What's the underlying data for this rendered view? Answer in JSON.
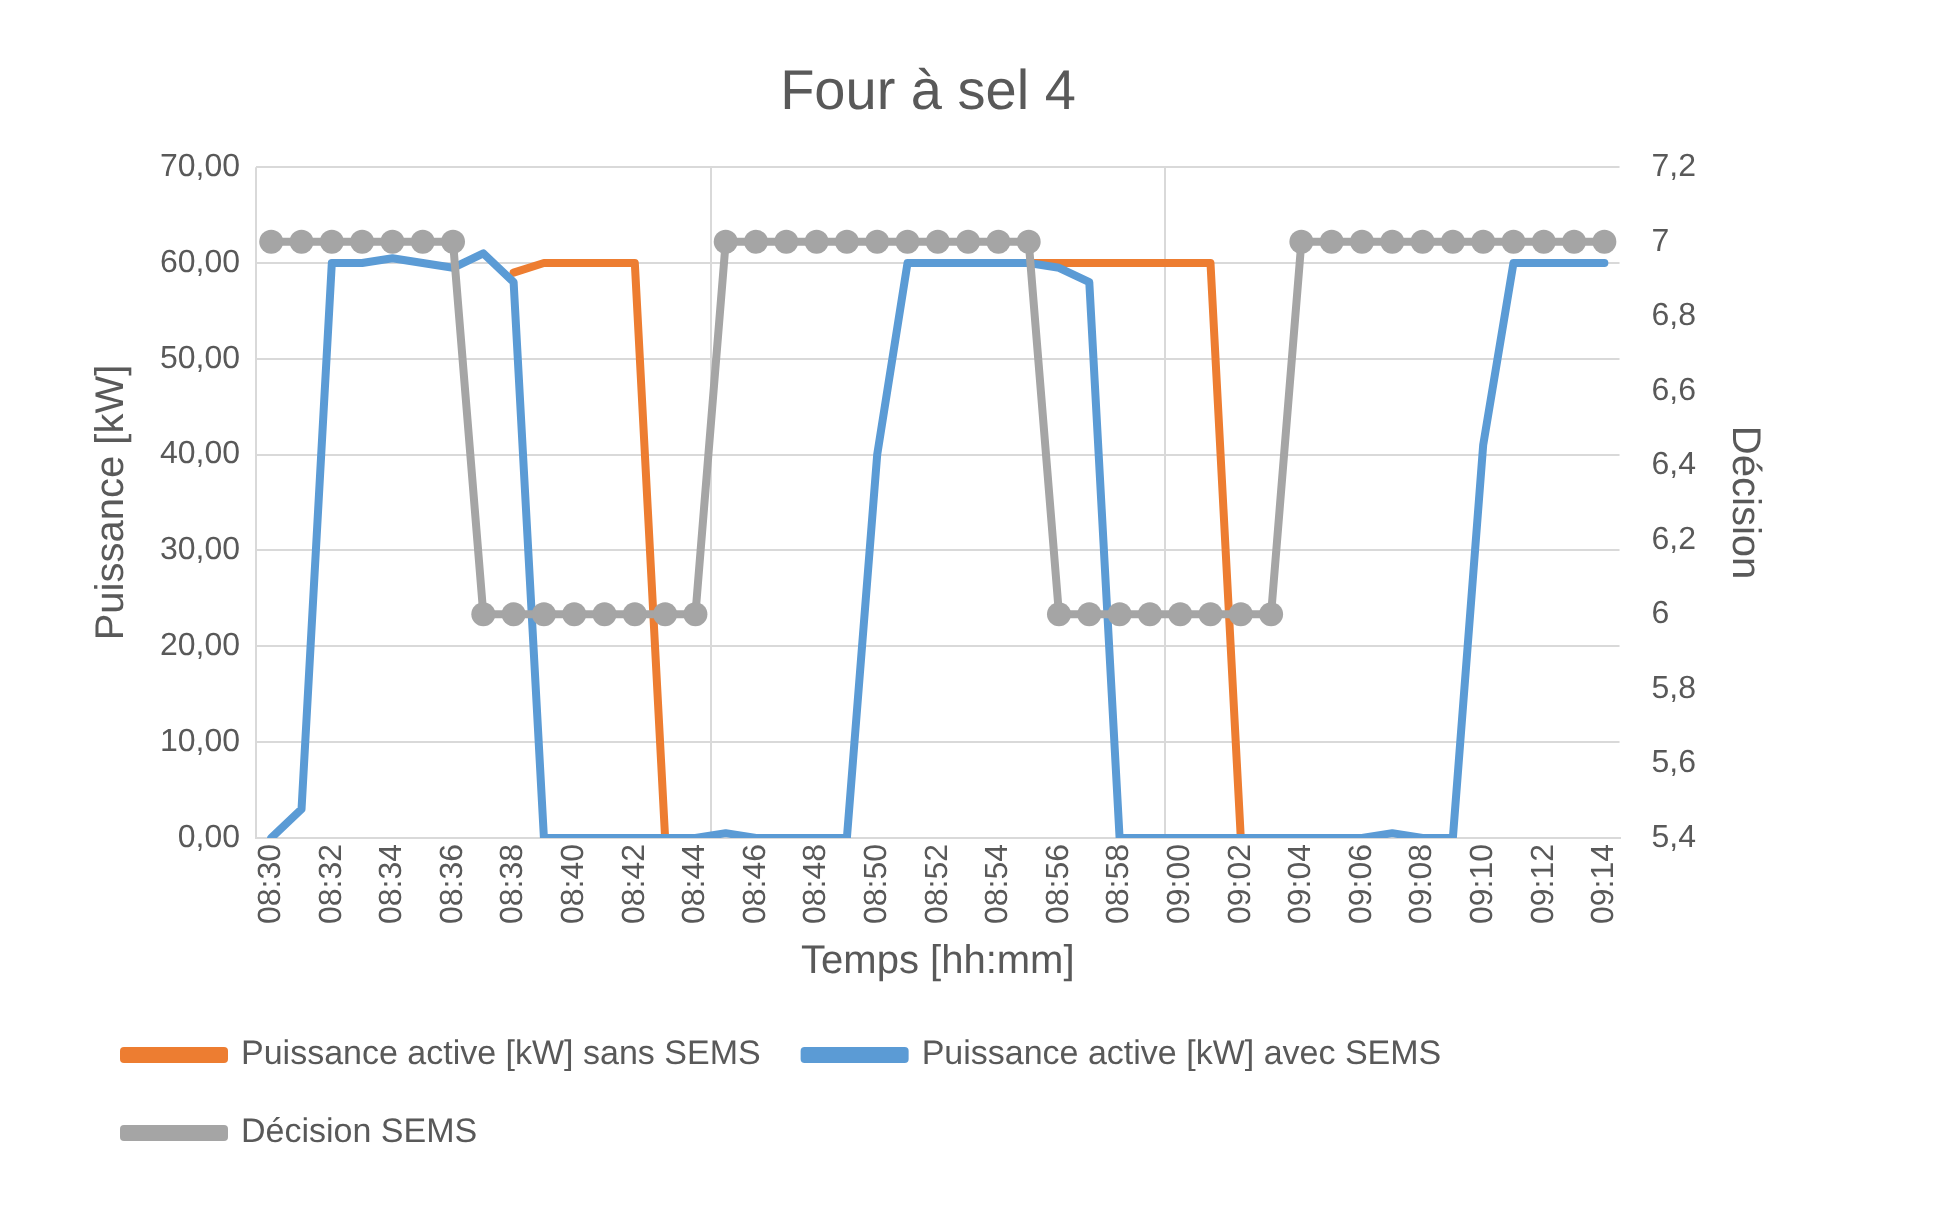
{
  "chart_data": {
    "type": "line",
    "title": "Four à sel 4",
    "xlabel": "Temps [hh:mm]",
    "ylabel": "Puissance [kW]",
    "y2label": "Décision",
    "categories": [
      "08:30",
      null,
      "08:32",
      null,
      "08:34",
      null,
      "08:36",
      null,
      "08:38",
      null,
      "08:40",
      null,
      "08:42",
      null,
      "08:44",
      null,
      "08:46",
      null,
      "08:48",
      null,
      "08:50",
      null,
      "08:52",
      null,
      "08:54",
      null,
      "08:56",
      null,
      "08:58",
      null,
      "09:00",
      null,
      "09:02",
      null,
      "09:04",
      null,
      "09:06",
      null,
      "09:08",
      null,
      "09:10",
      null,
      "09:12",
      null,
      "09:14"
    ],
    "series": [
      {
        "name": "Puissance active [kW] sans SEMS",
        "color": "#ed7d31",
        "marker": "none",
        "values": [
          null,
          null,
          null,
          null,
          null,
          null,
          null,
          null,
          59,
          60,
          60,
          60,
          60,
          0,
          null,
          null,
          null,
          null,
          null,
          null,
          null,
          null,
          null,
          null,
          null,
          60,
          60,
          60,
          60,
          60,
          60,
          60,
          0,
          null,
          null,
          null,
          null,
          null,
          null,
          null,
          null,
          null,
          null,
          null,
          null
        ]
      },
      {
        "name": "Puissance active [kW] avec SEMS",
        "color": "#5b9bd5",
        "marker": "none",
        "values": [
          0,
          3,
          60,
          60,
          60.5,
          60,
          59.5,
          61,
          58,
          0,
          0,
          0,
          0,
          0,
          0,
          0.5,
          0,
          0,
          0,
          0,
          40,
          60,
          60,
          60,
          60,
          60,
          59.5,
          58,
          0,
          0,
          0,
          0,
          0,
          0,
          0,
          0,
          0,
          0.5,
          0,
          0,
          41,
          60,
          60,
          60,
          60
        ]
      },
      {
        "name": "Décision SEMS",
        "color": "#a5a5a5",
        "marker": "circle",
        "axis": "y2",
        "values": [
          7,
          7,
          7,
          7,
          7,
          7,
          7,
          6,
          6,
          6,
          6,
          6,
          6,
          6,
          6,
          7,
          7,
          7,
          7,
          7,
          7,
          7,
          7,
          7,
          7,
          7,
          6,
          6,
          6,
          6,
          6,
          6,
          6,
          6,
          7,
          7,
          7,
          7,
          7,
          7,
          7,
          7,
          7,
          7,
          7
        ]
      }
    ],
    "ylim": [
      0,
      70
    ],
    "yticks": [
      {
        "value": 0,
        "label": "0,00"
      },
      {
        "value": 10,
        "label": "10,00"
      },
      {
        "value": 20,
        "label": "20,00"
      },
      {
        "value": 30,
        "label": "30,00"
      },
      {
        "value": 40,
        "label": "40,00"
      },
      {
        "value": 50,
        "label": "50,00"
      },
      {
        "value": 60,
        "label": "60,00"
      },
      {
        "value": 70,
        "label": "70,00"
      }
    ],
    "y2lim": [
      5.4,
      7.2
    ],
    "y2ticks": [
      {
        "value": 5.4,
        "label": "5,4"
      },
      {
        "value": 5.6,
        "label": "5,6"
      },
      {
        "value": 5.8,
        "label": "5,8"
      },
      {
        "value": 6,
        "label": "6"
      },
      {
        "value": 6.2,
        "label": "6,2"
      },
      {
        "value": 6.4,
        "label": "6,4"
      },
      {
        "value": 6.6,
        "label": "6,6"
      },
      {
        "value": 6.8,
        "label": "6,8"
      },
      {
        "value": 7,
        "label": "7"
      },
      {
        "value": 7.2,
        "label": "7,2"
      }
    ],
    "grid": true,
    "legend": "bottom",
    "line_style": "solid"
  }
}
